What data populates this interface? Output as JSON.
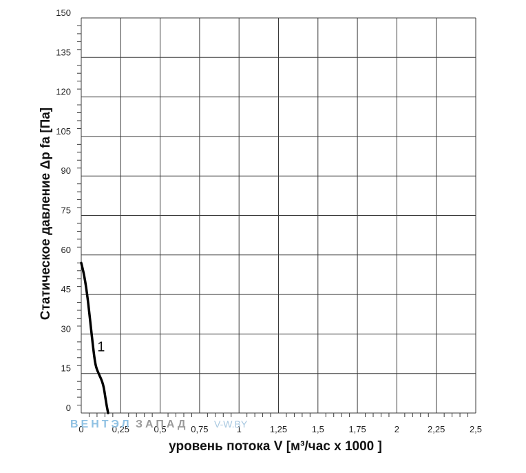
{
  "chart_data": {
    "type": "line",
    "xlabel": "уровень потока  V [м³/час x 1000 ]",
    "ylabel": "Статическое давление  Δp fa [Па]",
    "xlim": [
      0,
      2.5
    ],
    "ylim": [
      0,
      150
    ],
    "x_ticks": [
      "0",
      "0,25",
      "0,5",
      "0,75",
      "1",
      "1,25",
      "1,5",
      "1,75",
      "2",
      "2,25",
      "2,5"
    ],
    "y_ticks": [
      "0",
      "15",
      "30",
      "45",
      "60",
      "75",
      "90",
      "105",
      "120",
      "135",
      "150"
    ],
    "grid": true,
    "series": [
      {
        "name": "1",
        "x": [
          0,
          0.02,
          0.04,
          0.06,
          0.075,
          0.09,
          0.11,
          0.14,
          0.155,
          0.17
        ],
        "y": [
          57,
          52,
          44,
          33,
          25,
          18,
          15,
          11,
          5,
          0
        ]
      }
    ],
    "watermark": {
      "part1": "ВЕНТЭЛ",
      "part2": "ЗАПАД",
      "part3": "V-W.BY"
    }
  }
}
